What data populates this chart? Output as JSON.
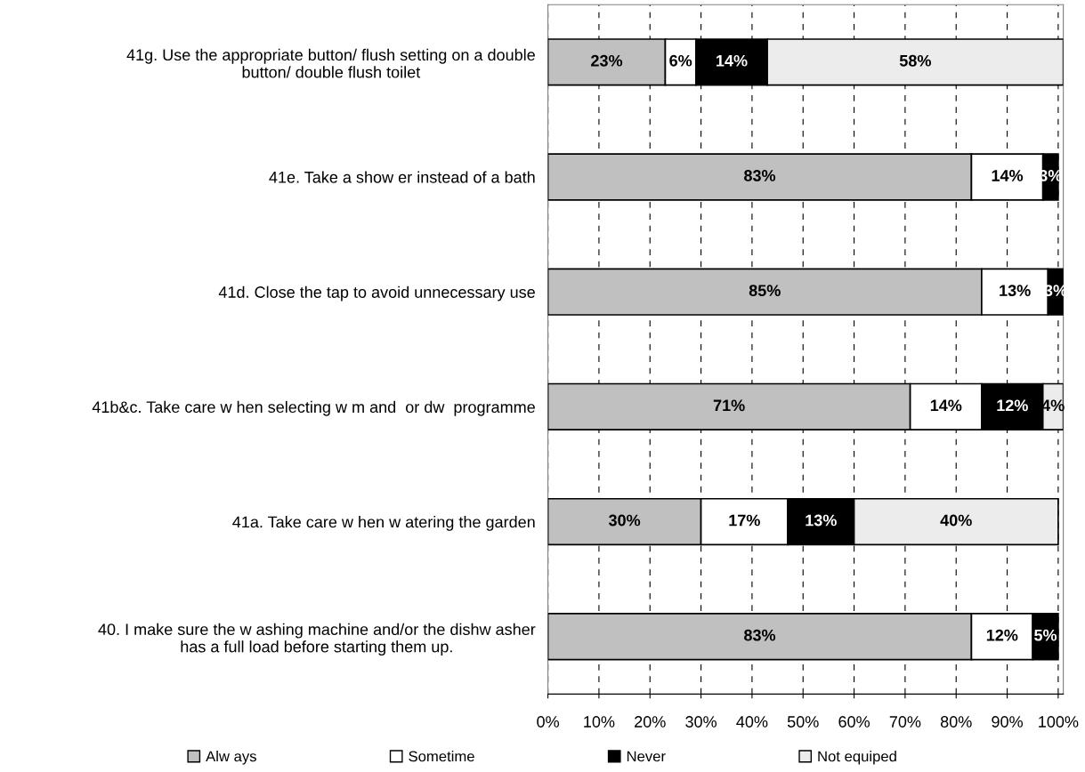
{
  "chart_data": {
    "type": "bar",
    "orientation": "horizontal",
    "stacked": true,
    "categories": [
      "41g. Use the appropriate button/ flush setting on a double\nbutton/ double flush toilet",
      "41e. Take a show er instead of a bath",
      "41d. Close the tap to avoid unnecessary use",
      "41b&c. Take care w hen selecting w m and  or dw  programme",
      "41a. Take care w hen w atering the garden",
      "40. I make sure the w ashing machine and/or the dishw asher\nhas a full load before starting them up."
    ],
    "series": [
      {
        "name": "Alw ays",
        "color": "#c0c0c0",
        "values": [
          23,
          83,
          85,
          71,
          30,
          83
        ],
        "value_labels": [
          "23%",
          "83%",
          "85%",
          "71%",
          "30%",
          "83%"
        ]
      },
      {
        "name": "Sometime",
        "color": "#ffffff",
        "values": [
          6,
          14,
          13,
          14,
          17,
          12
        ],
        "value_labels": [
          "6%",
          "14%",
          "13%",
          "14%",
          "17%",
          "12%"
        ]
      },
      {
        "name": "Never",
        "color": "#000000",
        "values": [
          14,
          3,
          3,
          12,
          13,
          5
        ],
        "value_labels": [
          "14%",
          "3%",
          "3%",
          "12%",
          "13%",
          "5%"
        ]
      },
      {
        "name": "Not equiped",
        "color": "#ececec",
        "values": [
          58,
          null,
          null,
          4,
          40,
          null
        ],
        "value_labels": [
          "58%",
          null,
          null,
          "4%",
          "40%",
          null
        ]
      }
    ],
    "xlim": [
      0,
      101
    ],
    "xticks": [
      {
        "value": 0,
        "label": "0%"
      },
      {
        "value": 10,
        "label": "10%"
      },
      {
        "value": 20,
        "label": "20%"
      },
      {
        "value": 30,
        "label": "30%"
      },
      {
        "value": 40,
        "label": "40%"
      },
      {
        "value": 50,
        "label": "50%"
      },
      {
        "value": 60,
        "label": "60%"
      },
      {
        "value": 70,
        "label": "70%"
      },
      {
        "value": 80,
        "label": "80%"
      },
      {
        "value": 90,
        "label": "90%"
      },
      {
        "value": 100,
        "label": "100%"
      }
    ],
    "grid": "x",
    "legend": "bottom"
  }
}
